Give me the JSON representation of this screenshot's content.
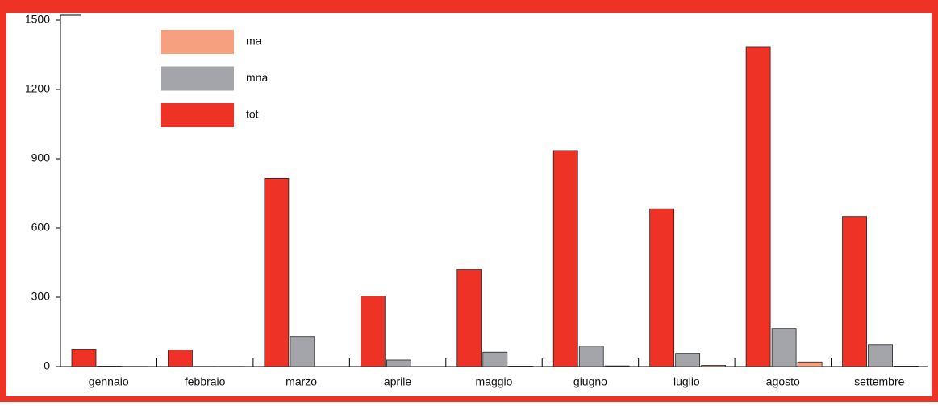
{
  "chart_data": {
    "type": "bar",
    "categories": [
      "gennaio",
      "febbraio",
      "marzo",
      "aprile",
      "maggio",
      "giugno",
      "luglio",
      "agosto",
      "settembre"
    ],
    "series": [
      {
        "name": "ma",
        "color": "#f7a07f",
        "values": [
          1,
          1,
          0,
          0,
          2,
          3,
          5,
          20,
          2
        ]
      },
      {
        "name": "mna",
        "color": "#a4a5aa",
        "values": [
          2,
          1,
          130,
          28,
          62,
          88,
          57,
          165,
          95
        ]
      },
      {
        "name": "tot",
        "color": "#ee3226",
        "values": [
          75,
          72,
          815,
          305,
          420,
          935,
          683,
          1385,
          650
        ]
      }
    ],
    "ylim": [
      0,
      1500
    ],
    "yticks": [
      0,
      300,
      600,
      900,
      1200,
      1500
    ],
    "grid": false
  }
}
